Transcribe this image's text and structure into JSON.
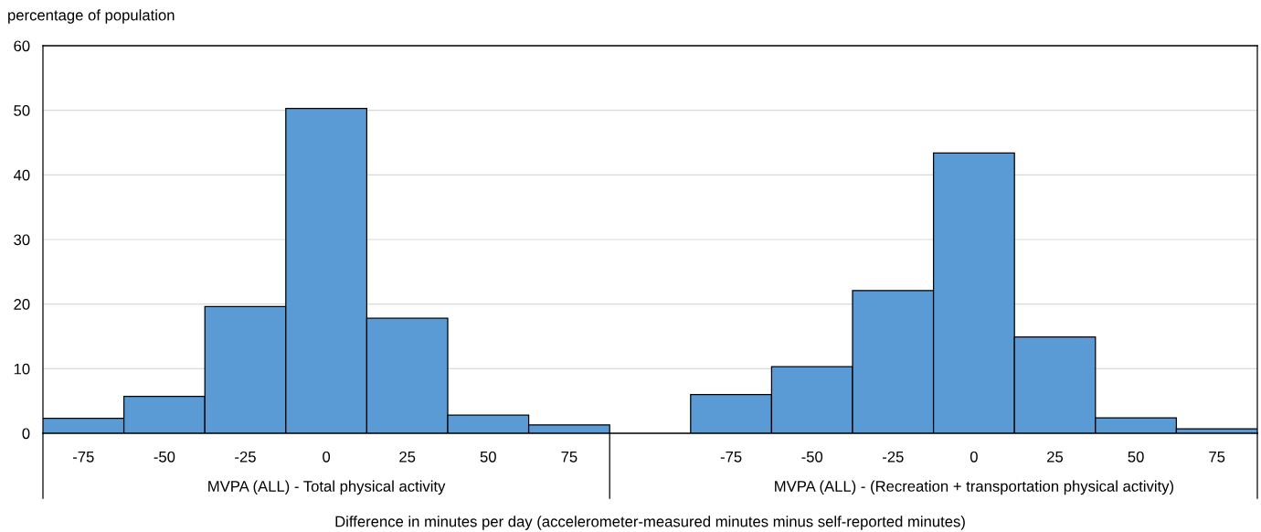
{
  "chart_data": {
    "type": "bar",
    "ylabel": "percentage of population",
    "xlabel": "Difference in minutes per day (accelerometer-measured minutes minus self-reported minutes)",
    "categories": [
      "-75",
      "-50",
      "-25",
      "0",
      "25",
      "50",
      "75",
      null,
      "-75",
      "-50",
      "-25",
      "0",
      "25",
      "50",
      "75"
    ],
    "values": [
      2.3,
      5.7,
      19.6,
      50.3,
      17.8,
      2.8,
      1.3,
      null,
      6.0,
      10.3,
      22.1,
      43.4,
      14.9,
      2.4,
      0.7
    ],
    "color": "#5b9bd5",
    "ylim": [
      0,
      60
    ],
    "yticks": [
      0,
      10,
      20,
      30,
      40,
      50,
      60
    ],
    "grid": "y",
    "annotations": [
      "MVPA (ALL) - Total physical activity",
      "MVPA (ALL) - (Recreation + transportation physical activity)"
    ]
  }
}
